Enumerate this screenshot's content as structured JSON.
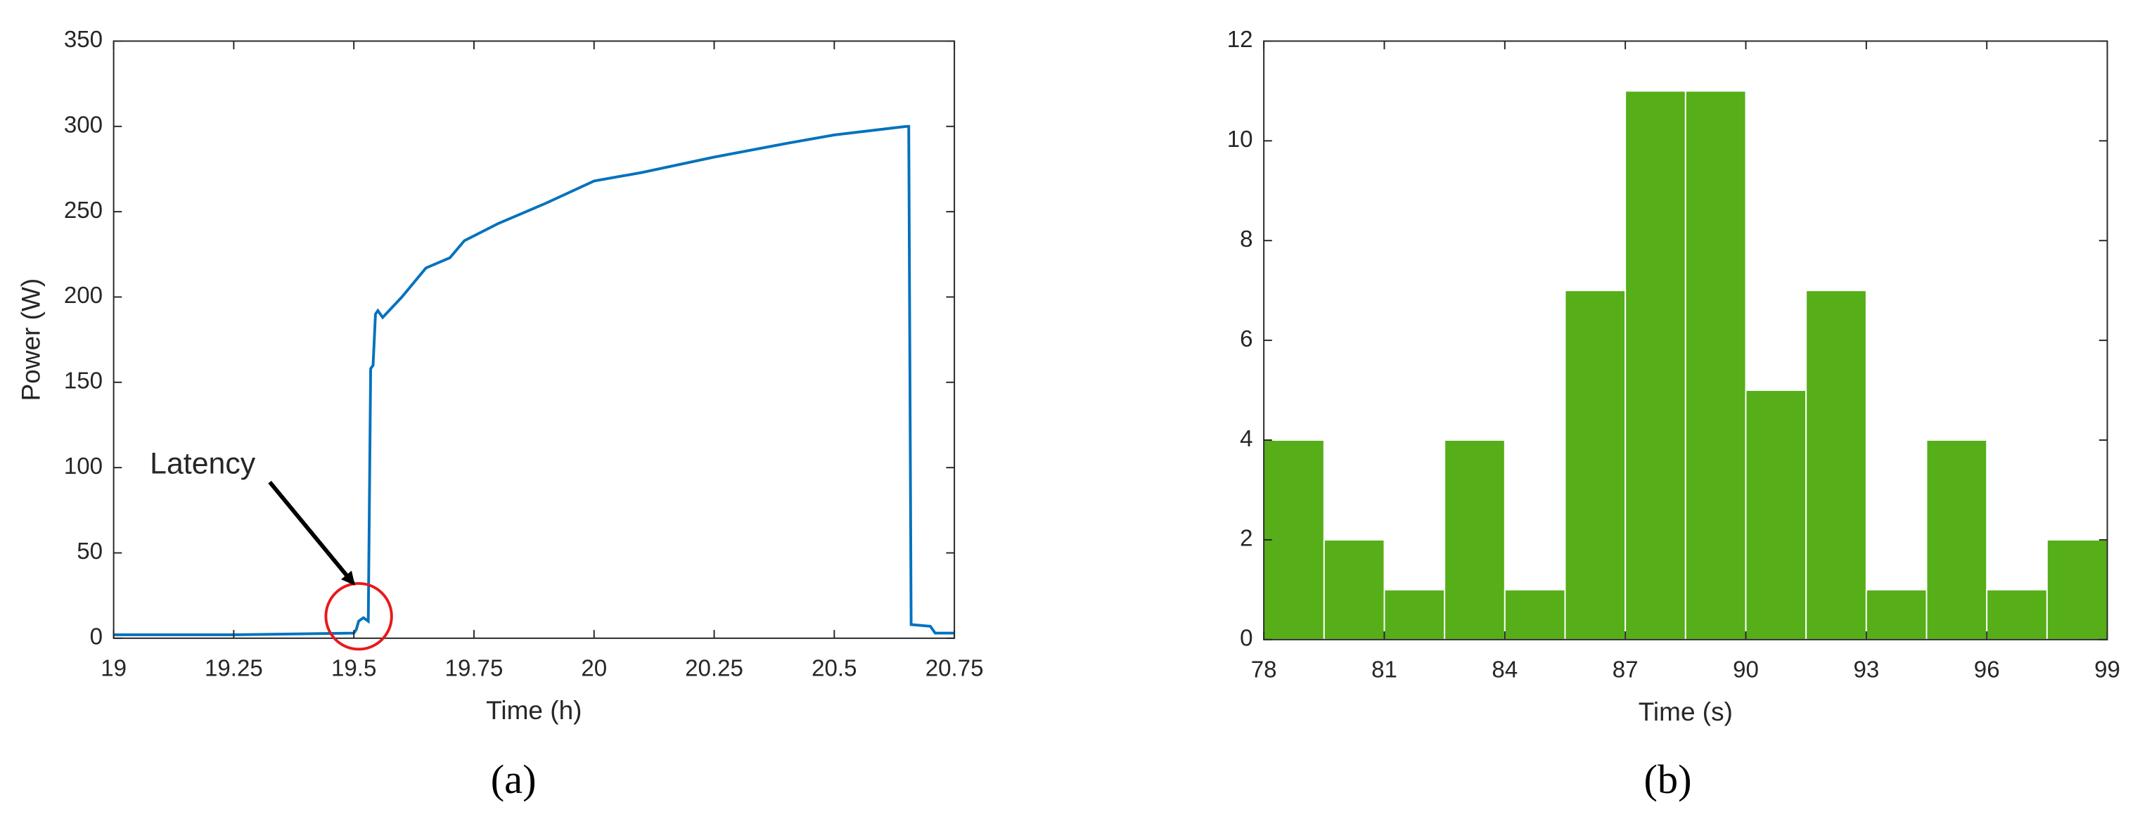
{
  "chart_data": [
    {
      "type": "line",
      "label": "(a)",
      "xlabel": "Time (h)",
      "ylabel": "Power (W)",
      "annotation": "Latency",
      "color": "#0072bd",
      "x": [
        19,
        19.25,
        19.5,
        19.505,
        19.51,
        19.52,
        19.53,
        19.535,
        19.54,
        19.545,
        19.55,
        19.56,
        19.6,
        19.65,
        19.7,
        19.73,
        19.8,
        19.9,
        20,
        20.1,
        20.25,
        20.4,
        20.5,
        20.65,
        20.655,
        20.66,
        20.7,
        20.71,
        20.75
      ],
      "values": [
        2,
        2,
        3,
        5,
        10,
        12,
        10,
        158,
        160,
        190,
        192,
        188,
        200,
        217,
        223,
        233,
        243,
        255,
        268,
        273,
        282,
        290,
        295,
        300,
        300,
        8,
        7,
        3,
        3
      ],
      "xlim": [
        19,
        20.75
      ],
      "xticks": [
        19,
        19.25,
        19.5,
        19.75,
        20,
        20.25,
        20.5,
        20.75
      ],
      "ylim": [
        0,
        350
      ],
      "yticks": [
        0,
        50,
        100,
        150,
        200,
        250,
        300,
        350
      ]
    },
    {
      "type": "histogram",
      "label": "(b)",
      "xlabel": "Time (s)",
      "color": "#56ae18",
      "bins": [
        78,
        79.5,
        81,
        82.5,
        84,
        85.5,
        87,
        88.5,
        90,
        91.5,
        93,
        94.5,
        96,
        97.5,
        99
      ],
      "values": [
        4,
        2,
        1,
        4,
        1,
        7,
        11,
        11,
        5,
        7,
        1,
        4,
        1,
        2
      ],
      "xlim": [
        78,
        99
      ],
      "xticks": [
        78,
        81,
        84,
        87,
        90,
        93,
        96,
        99
      ],
      "ylim": [
        0,
        12
      ],
      "yticks": [
        0,
        2,
        4,
        6,
        8,
        10,
        12
      ]
    }
  ]
}
